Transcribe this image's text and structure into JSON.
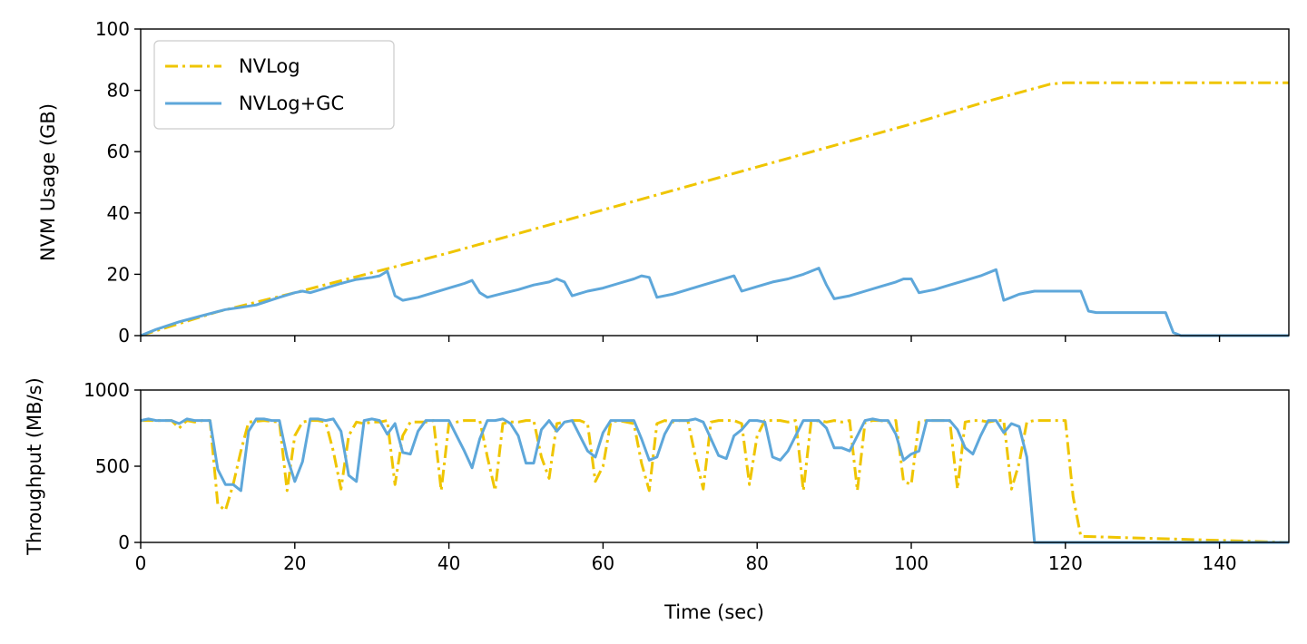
{
  "colors": {
    "nvlog": "#efc500",
    "nvlog_gc": "#5ea7da"
  },
  "chart_data": [
    {
      "type": "line",
      "xlabel": "",
      "ylabel": "NVM Usage (GB)",
      "xlim": [
        0,
        149
      ],
      "ylim": [
        0,
        100
      ],
      "yticks": [
        0,
        20,
        40,
        60,
        80,
        100
      ],
      "xticks": [
        0,
        20,
        40,
        60,
        80,
        100,
        120,
        140
      ],
      "show_xtick_labels": false,
      "grid": false,
      "legend_position": "upper-left",
      "series": [
        {
          "name": "NVLog",
          "style": "dashdot",
          "color": "#efc500",
          "x": [
            0,
            10,
            20,
            30,
            40,
            50,
            60,
            70,
            80,
            90,
            100,
            110,
            118,
            120,
            149
          ],
          "y": [
            0,
            7.8,
            14,
            20.5,
            27,
            34,
            41,
            48,
            55,
            62,
            69,
            76.5,
            82,
            82.5,
            82.5
          ]
        },
        {
          "name": "NVLog+GC",
          "style": "solid",
          "color": "#5ea7da",
          "x": [
            0,
            2,
            5,
            8,
            11,
            13,
            15,
            18,
            20,
            21,
            22,
            24,
            26,
            28,
            30,
            31,
            32,
            33,
            34,
            36,
            38,
            40,
            42,
            43,
            44,
            45,
            47,
            49,
            51,
            53,
            54,
            55,
            56,
            58,
            60,
            62,
            64,
            65,
            66,
            67,
            69,
            71,
            73,
            75,
            77,
            78,
            80,
            82,
            84,
            86,
            88,
            89,
            90,
            92,
            94,
            96,
            98,
            99,
            100,
            101,
            103,
            105,
            107,
            109,
            111,
            112,
            113,
            114,
            116,
            118,
            120,
            122,
            123,
            124,
            126,
            128,
            130,
            132,
            133,
            134,
            135,
            137,
            140,
            145,
            149
          ],
          "y": [
            0,
            2,
            4.5,
            6.5,
            8.5,
            9.2,
            10,
            12.5,
            14,
            14.5,
            14,
            15.5,
            17,
            18.3,
            19,
            19.5,
            21,
            13,
            11.5,
            12.5,
            14,
            15.5,
            17,
            18,
            14,
            12.5,
            13.8,
            15,
            16.5,
            17.5,
            18.5,
            17.5,
            13,
            14.5,
            15.5,
            17,
            18.5,
            19.5,
            19,
            12.5,
            13.5,
            15,
            16.5,
            18,
            19.5,
            14.5,
            16,
            17.5,
            18.5,
            20,
            22,
            16.5,
            12,
            13,
            14.5,
            16,
            17.5,
            18.5,
            18.5,
            14,
            15,
            16.5,
            18,
            19.5,
            21.5,
            11.5,
            12.5,
            13.5,
            14.5,
            14.5,
            14.5,
            14.5,
            8,
            7.5,
            7.5,
            7.5,
            7.5,
            7.5,
            7.5,
            1,
            0,
            0,
            0,
            0,
            0
          ]
        }
      ]
    },
    {
      "type": "line",
      "xlabel": "Time (sec)",
      "ylabel": "Throughput (MB/s)",
      "xlim": [
        0,
        149
      ],
      "ylim": [
        0,
        1000
      ],
      "yticks": [
        0,
        500,
        1000
      ],
      "xticks": [
        0,
        20,
        40,
        60,
        80,
        100,
        120,
        140
      ],
      "show_xtick_labels": true,
      "grid": false,
      "series": [
        {
          "name": "NVLog",
          "style": "dashdot",
          "color": "#efc500",
          "x": [
            0,
            2,
            4,
            5,
            6,
            7,
            8,
            9,
            10,
            11,
            12,
            13,
            14,
            16,
            18,
            19,
            20,
            21,
            22,
            23,
            24,
            25,
            26,
            27,
            28,
            29,
            30,
            31,
            32,
            33,
            34,
            35,
            36,
            37,
            38,
            39,
            40,
            41,
            42,
            43,
            44,
            45,
            46,
            47,
            48,
            49,
            50,
            51,
            52,
            53,
            54,
            55,
            56,
            57,
            58,
            59,
            60,
            61,
            62,
            63,
            64,
            65,
            66,
            67,
            68,
            69,
            70,
            71,
            72,
            73,
            74,
            75,
            76,
            77,
            78,
            79,
            80,
            81,
            82,
            83,
            84,
            85,
            86,
            87,
            88,
            89,
            90,
            91,
            92,
            93,
            94,
            95,
            96,
            97,
            98,
            99,
            100,
            101,
            102,
            103,
            104,
            105,
            106,
            107,
            108,
            109,
            110,
            111,
            112,
            113,
            114,
            115,
            116,
            117,
            118,
            119,
            120,
            121,
            122,
            149
          ],
          "y": [
            800,
            800,
            800,
            750,
            800,
            790,
            800,
            800,
            250,
            210,
            380,
            600,
            790,
            800,
            790,
            340,
            700,
            790,
            800,
            800,
            790,
            600,
            350,
            700,
            790,
            780,
            790,
            790,
            800,
            380,
            700,
            790,
            790,
            790,
            800,
            340,
            780,
            790,
            800,
            800,
            800,
            560,
            340,
            780,
            790,
            790,
            800,
            800,
            560,
            420,
            780,
            790,
            800,
            800,
            780,
            400,
            500,
            790,
            800,
            790,
            780,
            520,
            340,
            780,
            800,
            790,
            800,
            800,
            560,
            350,
            790,
            800,
            800,
            800,
            780,
            380,
            700,
            800,
            800,
            800,
            790,
            800,
            340,
            790,
            800,
            790,
            800,
            790,
            800,
            340,
            790,
            800,
            800,
            790,
            800,
            400,
            380,
            790,
            800,
            800,
            800,
            800,
            350,
            790,
            800,
            800,
            790,
            800,
            800,
            350,
            520,
            790,
            800,
            800,
            800,
            800,
            800,
            300,
            40,
            0
          ]
        },
        {
          "name": "NVLog+GC",
          "style": "solid",
          "color": "#5ea7da",
          "x": [
            0,
            1,
            2,
            3,
            4,
            5,
            6,
            7,
            8,
            9,
            10,
            11,
            12,
            13,
            14,
            15,
            16,
            17,
            18,
            19,
            20,
            21,
            22,
            23,
            24,
            25,
            26,
            27,
            28,
            29,
            30,
            31,
            32,
            33,
            34,
            35,
            36,
            37,
            38,
            39,
            40,
            41,
            42,
            43,
            44,
            45,
            46,
            47,
            48,
            49,
            50,
            51,
            52,
            53,
            54,
            55,
            56,
            57,
            58,
            59,
            60,
            61,
            62,
            63,
            64,
            65,
            66,
            67,
            68,
            69,
            70,
            71,
            72,
            73,
            74,
            75,
            76,
            77,
            78,
            79,
            80,
            81,
            82,
            83,
            84,
            85,
            86,
            87,
            88,
            89,
            90,
            91,
            92,
            93,
            94,
            95,
            96,
            97,
            98,
            99,
            100,
            101,
            102,
            103,
            104,
            105,
            106,
            107,
            108,
            109,
            110,
            111,
            112,
            113,
            114,
            115,
            116,
            117,
            120,
            130,
            140,
            149
          ],
          "y": [
            800,
            810,
            800,
            800,
            800,
            780,
            810,
            800,
            800,
            800,
            480,
            380,
            380,
            340,
            730,
            810,
            810,
            800,
            800,
            560,
            400,
            530,
            810,
            810,
            800,
            810,
            730,
            440,
            400,
            800,
            810,
            800,
            710,
            780,
            590,
            580,
            730,
            800,
            800,
            800,
            800,
            700,
            600,
            490,
            680,
            800,
            800,
            810,
            780,
            700,
            520,
            520,
            740,
            800,
            730,
            790,
            800,
            700,
            600,
            560,
            720,
            800,
            800,
            800,
            800,
            680,
            540,
            560,
            710,
            800,
            800,
            800,
            810,
            790,
            680,
            570,
            550,
            700,
            740,
            800,
            800,
            790,
            560,
            540,
            600,
            700,
            800,
            800,
            800,
            750,
            620,
            620,
            600,
            700,
            800,
            810,
            800,
            800,
            710,
            540,
            580,
            600,
            800,
            800,
            800,
            800,
            740,
            620,
            580,
            700,
            800,
            800,
            720,
            780,
            760,
            560,
            0,
            0,
            0,
            0,
            0,
            0
          ]
        }
      ]
    }
  ]
}
